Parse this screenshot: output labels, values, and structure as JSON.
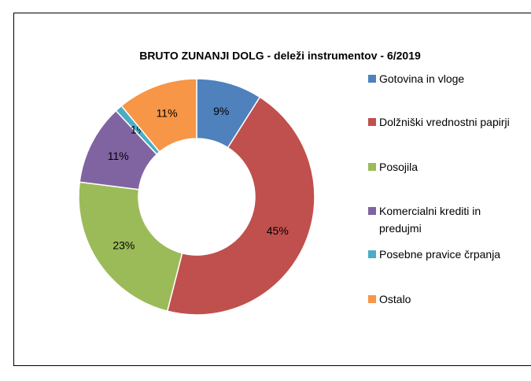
{
  "chart_data": {
    "type": "donut",
    "title": "BRUTO ZUNANJI DOLG - deleži instrumentov  - 6/2019",
    "categories": [
      "Gotovina in vloge",
      "Dolžniški vrednostni papirji",
      "Posojila",
      "Komercialni krediti in predujmi",
      "Posebne pravice črpanja",
      "Ostalo"
    ],
    "values": [
      9,
      45,
      23,
      11,
      1,
      11
    ],
    "value_labels": [
      "9%",
      "45%",
      "23%",
      "11%",
      "1%",
      "11%"
    ],
    "colors": [
      "#4f81bd",
      "#c0504d",
      "#9bbb59",
      "#8064a2",
      "#4bacc6",
      "#f79646"
    ],
    "legend": "right"
  }
}
